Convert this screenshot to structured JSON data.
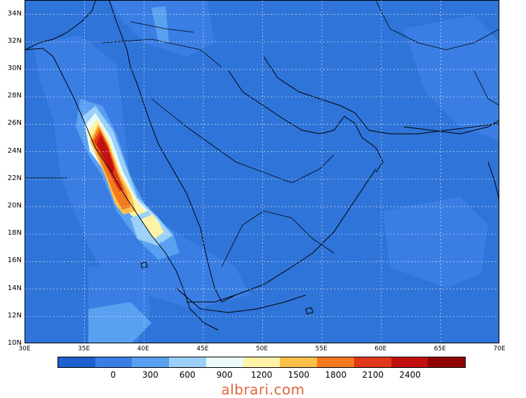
{
  "map": {
    "lat_labels": [
      "34N",
      "32N",
      "30N",
      "28N",
      "26N",
      "24N",
      "22N",
      "20N",
      "18N",
      "16N",
      "14N",
      "12N",
      "10N"
    ],
    "lon_labels": [
      "30E",
      "35E",
      "40E",
      "45E",
      "50E",
      "55E",
      "60E",
      "65E",
      "70E"
    ],
    "lat_range": [
      10,
      35
    ],
    "lon_range": [
      30,
      70
    ],
    "background_color": "#2f74d8",
    "coastline_color": "#000000",
    "gridline_color": "#ffffff",
    "gridlines": true
  },
  "colorbar": {
    "tick_labels": [
      "0",
      "300",
      "600",
      "900",
      "1200",
      "1500",
      "1800",
      "2100",
      "2400"
    ],
    "colors": [
      "#1f5fd0",
      "#3a7ee4",
      "#5aa0f0",
      "#9ad0fa",
      "#e8fafa",
      "#fdf2a6",
      "#fbc04b",
      "#f47a1f",
      "#e0381a",
      "#c21010",
      "#900000"
    ]
  },
  "watermark": "albrari.com"
}
